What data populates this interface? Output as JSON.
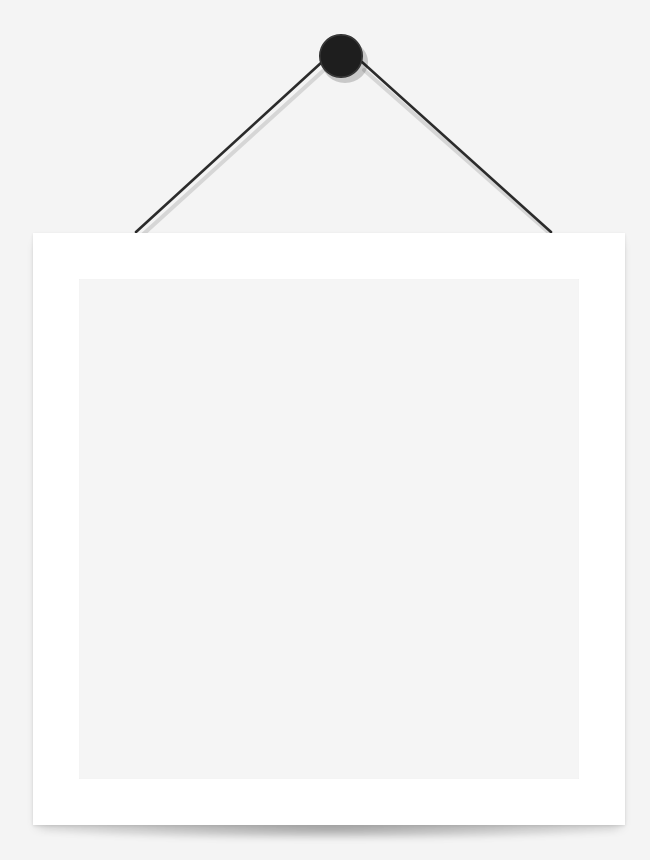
{
  "scene": {
    "background_color": "#f4f4f4",
    "frame_color": "#ffffff",
    "picture_area_color": "#f5f5f5",
    "string_color": "#2b2b2b",
    "nail_color": "#1e1e1e",
    "icons": [
      "nail-icon",
      "hanging-string-icon"
    ]
  }
}
